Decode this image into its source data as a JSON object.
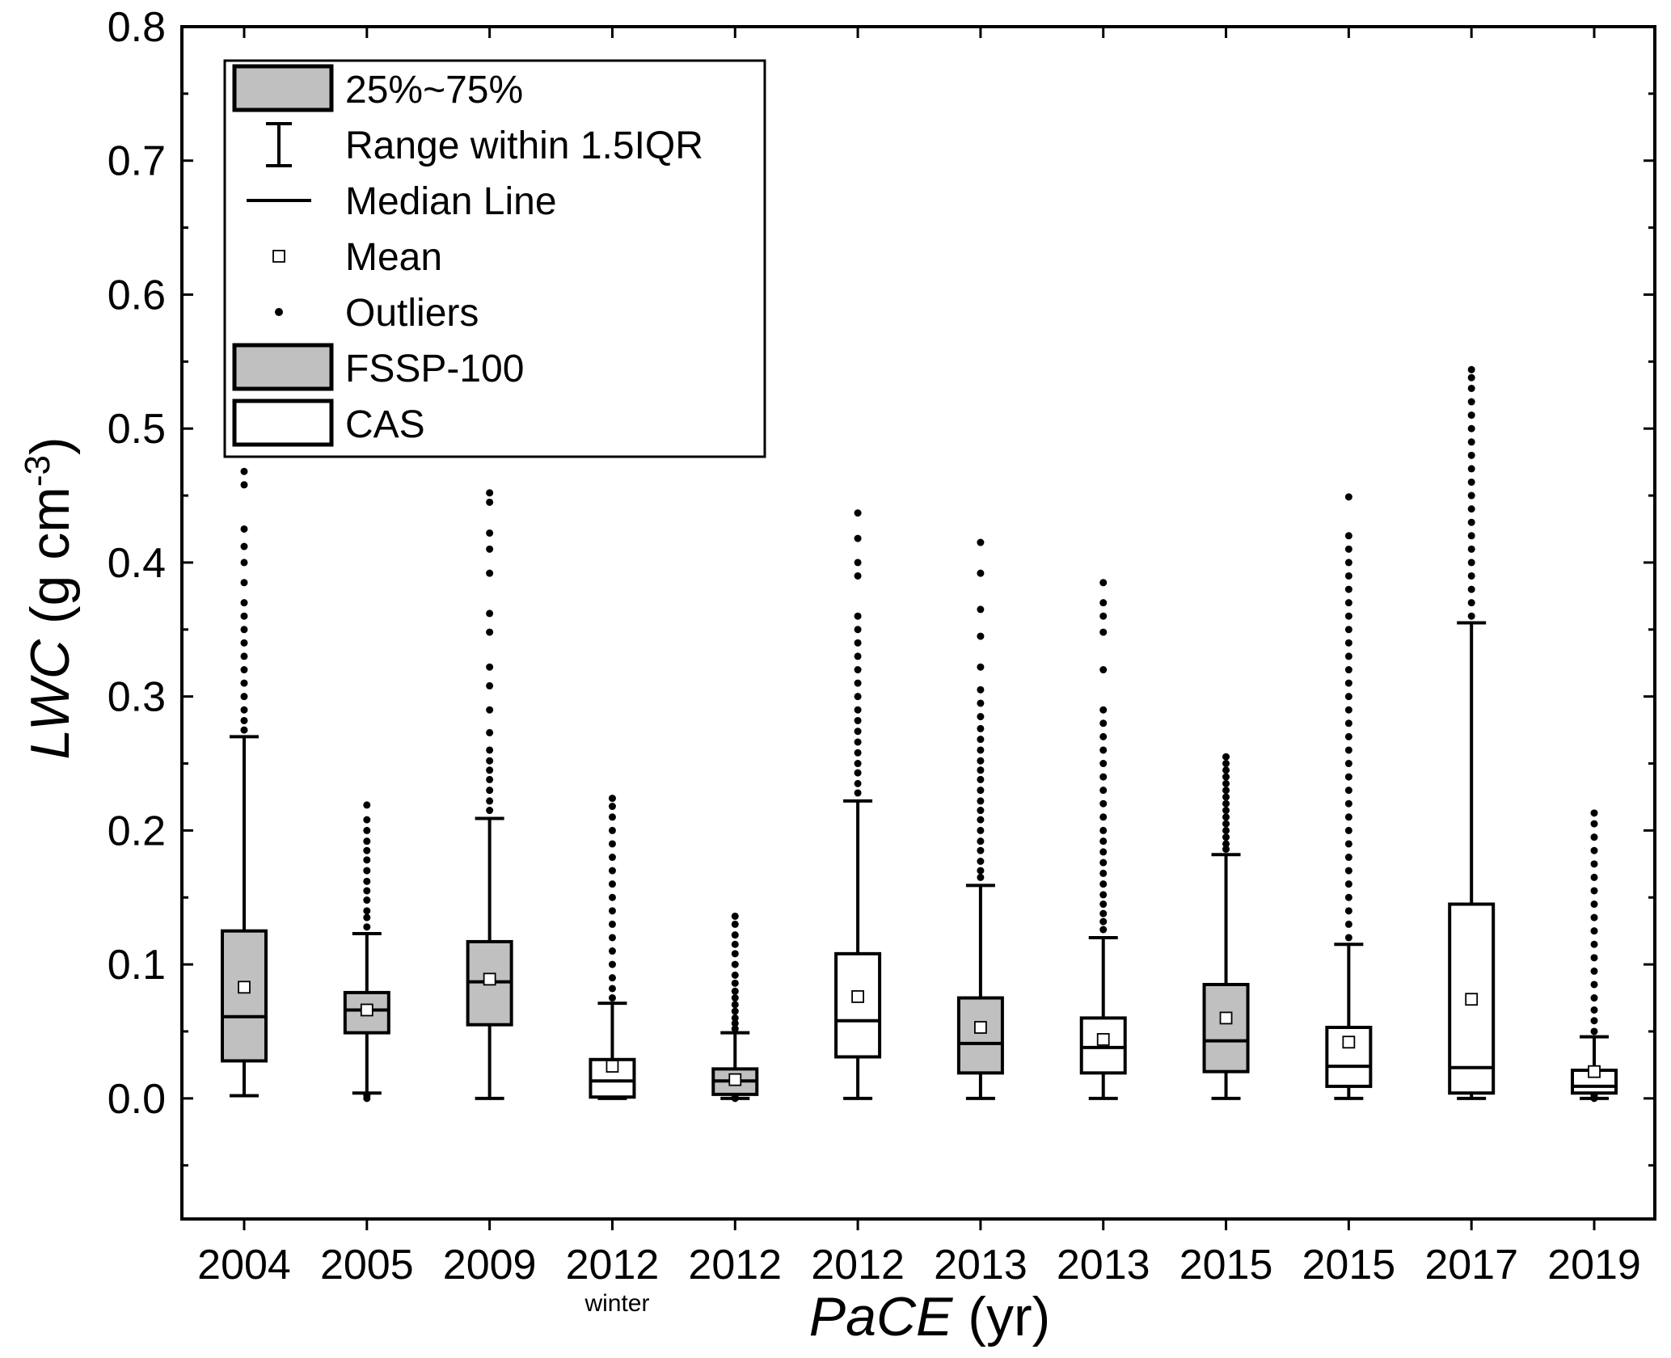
{
  "chart_data": {
    "type": "box",
    "title": "",
    "xlabel": {
      "italic": "PaCE",
      "normal": " (yr)"
    },
    "ylabel": {
      "italic": "LWC",
      "normal": " (g cm",
      "sup": "-3",
      "close": ")"
    },
    "ylim": [
      -0.09,
      0.8
    ],
    "yticks": [
      "0.0",
      "0.1",
      "0.2",
      "0.3",
      "0.4",
      "0.5",
      "0.6",
      "0.7",
      "0.8"
    ],
    "categories": [
      "2004",
      "2005",
      "2009",
      "2012",
      "2012",
      "2012",
      "2013",
      "2013",
      "2015",
      "2015",
      "2017",
      "2019"
    ],
    "category_sublabels": [
      "",
      "",
      "",
      "winter",
      "",
      "",
      "",
      "",
      "",
      "",
      "",
      ""
    ],
    "instrument": [
      "FSSP-100",
      "FSSP-100",
      "FSSP-100",
      "CAS",
      "FSSP-100",
      "CAS",
      "FSSP-100",
      "CAS",
      "FSSP-100",
      "CAS",
      "CAS",
      "CAS"
    ],
    "boxes": [
      {
        "q1": 0.028,
        "median": 0.061,
        "q3": 0.125,
        "mean": 0.083,
        "whisker_low": 0.002,
        "whisker_high": 0.27,
        "outliers": [
          0.275,
          0.282,
          0.29,
          0.3,
          0.31,
          0.32,
          0.33,
          0.34,
          0.35,
          0.36,
          0.37,
          0.385,
          0.4,
          0.412,
          0.425,
          0.458,
          0.468
        ]
      },
      {
        "q1": 0.049,
        "median": 0.066,
        "q3": 0.079,
        "mean": 0.066,
        "whisker_low": 0.004,
        "whisker_high": 0.123,
        "outliers": [
          0.0,
          0.002,
          0.128,
          0.135,
          0.14,
          0.148,
          0.155,
          0.162,
          0.17,
          0.178,
          0.185,
          0.192,
          0.2,
          0.208,
          0.219
        ]
      },
      {
        "q1": 0.055,
        "median": 0.087,
        "q3": 0.117,
        "mean": 0.089,
        "whisker_low": 0.0,
        "whisker_high": 0.209,
        "outliers": [
          0.215,
          0.222,
          0.23,
          0.238,
          0.245,
          0.252,
          0.26,
          0.273,
          0.29,
          0.308,
          0.322,
          0.348,
          0.362,
          0.392,
          0.41,
          0.422,
          0.445,
          0.452
        ]
      },
      {
        "q1": 0.001,
        "median": 0.013,
        "q3": 0.029,
        "mean": 0.024,
        "whisker_low": 0.0,
        "whisker_high": 0.071,
        "outliers": [
          0.075,
          0.082,
          0.09,
          0.1,
          0.11,
          0.12,
          0.13,
          0.14,
          0.15,
          0.16,
          0.17,
          0.18,
          0.19,
          0.2,
          0.21,
          0.218,
          0.224
        ]
      },
      {
        "q1": 0.003,
        "median": 0.013,
        "q3": 0.022,
        "mean": 0.014,
        "whisker_low": 0.0,
        "whisker_high": 0.049,
        "outliers": [
          0.0,
          0.002,
          0.052,
          0.056,
          0.06,
          0.065,
          0.07,
          0.075,
          0.08,
          0.086,
          0.092,
          0.1,
          0.108,
          0.115,
          0.122,
          0.13,
          0.136
        ]
      },
      {
        "q1": 0.031,
        "median": 0.058,
        "q3": 0.108,
        "mean": 0.076,
        "whisker_low": 0.0,
        "whisker_high": 0.222,
        "outliers": [
          0.228,
          0.235,
          0.243,
          0.25,
          0.258,
          0.266,
          0.274,
          0.282,
          0.29,
          0.3,
          0.31,
          0.32,
          0.33,
          0.34,
          0.35,
          0.36,
          0.39,
          0.4,
          0.418,
          0.437
        ]
      },
      {
        "q1": 0.019,
        "median": 0.041,
        "q3": 0.075,
        "mean": 0.053,
        "whisker_low": 0.0,
        "whisker_high": 0.159,
        "outliers": [
          0.165,
          0.17,
          0.177,
          0.185,
          0.192,
          0.2,
          0.208,
          0.215,
          0.222,
          0.23,
          0.238,
          0.245,
          0.252,
          0.26,
          0.268,
          0.276,
          0.285,
          0.295,
          0.305,
          0.322,
          0.345,
          0.365,
          0.392,
          0.415
        ]
      },
      {
        "q1": 0.019,
        "median": 0.038,
        "q3": 0.06,
        "mean": 0.044,
        "whisker_low": 0.0,
        "whisker_high": 0.12,
        "outliers": [
          0.126,
          0.132,
          0.138,
          0.145,
          0.152,
          0.16,
          0.168,
          0.176,
          0.184,
          0.192,
          0.2,
          0.21,
          0.22,
          0.23,
          0.24,
          0.25,
          0.26,
          0.27,
          0.28,
          0.29,
          0.32,
          0.348,
          0.36,
          0.37,
          0.385
        ]
      },
      {
        "q1": 0.02,
        "median": 0.043,
        "q3": 0.085,
        "mean": 0.06,
        "whisker_low": 0.0,
        "whisker_high": 0.182,
        "outliers": [
          0.186,
          0.19,
          0.195,
          0.2,
          0.205,
          0.21,
          0.215,
          0.22,
          0.225,
          0.23,
          0.235,
          0.24,
          0.245,
          0.25,
          0.255
        ]
      },
      {
        "q1": 0.009,
        "median": 0.024,
        "q3": 0.053,
        "mean": 0.042,
        "whisker_low": 0.0,
        "whisker_high": 0.115,
        "outliers": [
          0.12,
          0.13,
          0.14,
          0.15,
          0.16,
          0.17,
          0.18,
          0.19,
          0.2,
          0.21,
          0.22,
          0.23,
          0.24,
          0.25,
          0.26,
          0.27,
          0.28,
          0.29,
          0.3,
          0.31,
          0.32,
          0.33,
          0.34,
          0.35,
          0.36,
          0.37,
          0.38,
          0.39,
          0.4,
          0.41,
          0.42,
          0.449
        ]
      },
      {
        "q1": 0.004,
        "median": 0.023,
        "q3": 0.145,
        "mean": 0.074,
        "whisker_low": 0.0,
        "whisker_high": 0.355,
        "outliers": [
          0.36,
          0.37,
          0.38,
          0.39,
          0.4,
          0.41,
          0.42,
          0.43,
          0.44,
          0.45,
          0.46,
          0.47,
          0.48,
          0.49,
          0.5,
          0.51,
          0.52,
          0.53,
          0.538,
          0.544
        ]
      },
      {
        "q1": 0.004,
        "median": 0.009,
        "q3": 0.021,
        "mean": 0.02,
        "whisker_low": 0.0,
        "whisker_high": 0.046,
        "outliers": [
          0.0,
          0.002,
          0.05,
          0.058,
          0.066,
          0.075,
          0.085,
          0.095,
          0.105,
          0.115,
          0.125,
          0.135,
          0.145,
          0.155,
          0.165,
          0.175,
          0.185,
          0.195,
          0.205,
          0.213
        ]
      }
    ],
    "legend": {
      "position": "top-left",
      "items": [
        {
          "kind": "box-gray",
          "label": "25%~75%"
        },
        {
          "kind": "whisker",
          "label": "Range within 1.5IQR"
        },
        {
          "kind": "median",
          "label": "Median Line"
        },
        {
          "kind": "mean",
          "label": "Mean"
        },
        {
          "kind": "outlier",
          "label": "Outliers"
        },
        {
          "kind": "box-gray",
          "label": "FSSP-100"
        },
        {
          "kind": "box-white",
          "label": "CAS"
        }
      ]
    },
    "colors": {
      "FSSP-100": "#c0c0c0",
      "CAS": "#ffffff",
      "line": "#000000"
    }
  }
}
